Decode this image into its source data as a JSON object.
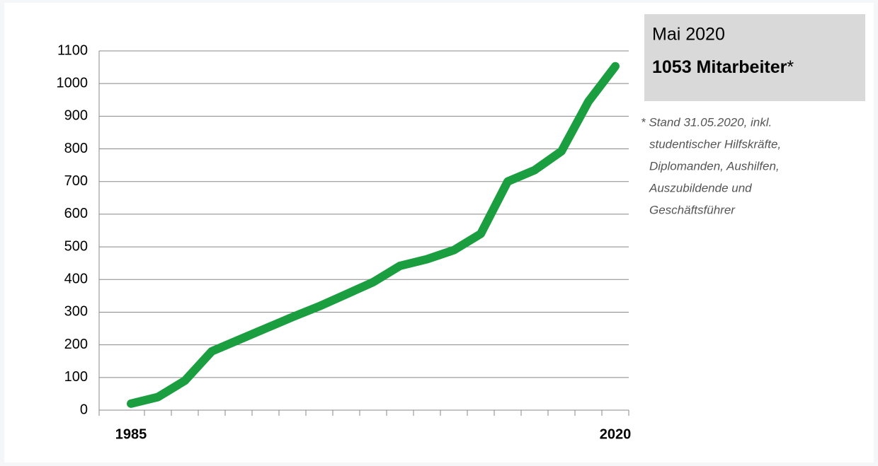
{
  "chart_data": {
    "type": "line",
    "categories": [
      "1985",
      null,
      null,
      null,
      null,
      null,
      null,
      null,
      null,
      null,
      null,
      null,
      null,
      null,
      null,
      null,
      null,
      null,
      "2020"
    ],
    "values": [
      20,
      40,
      90,
      180,
      215,
      250,
      285,
      318,
      355,
      392,
      442,
      462,
      490,
      540,
      700,
      735,
      793,
      945,
      1053
    ],
    "color": "#1a9e3f",
    "ylim": [
      0,
      1100
    ],
    "yticks": [
      0,
      100,
      200,
      300,
      400,
      500,
      600,
      700,
      800,
      900,
      1000,
      1100
    ],
    "grid": true,
    "annotation": {
      "title": "Mai 2020",
      "highlight": "1053 Mitarbeiter",
      "mark": "*"
    },
    "footnote": [
      "* Stand 31.05.2020, inkl.",
      "studentischer Hilfskräfte,",
      "Diplomanden, Aushilfen,",
      "Auszubildende und",
      "Geschäftsführer"
    ]
  }
}
